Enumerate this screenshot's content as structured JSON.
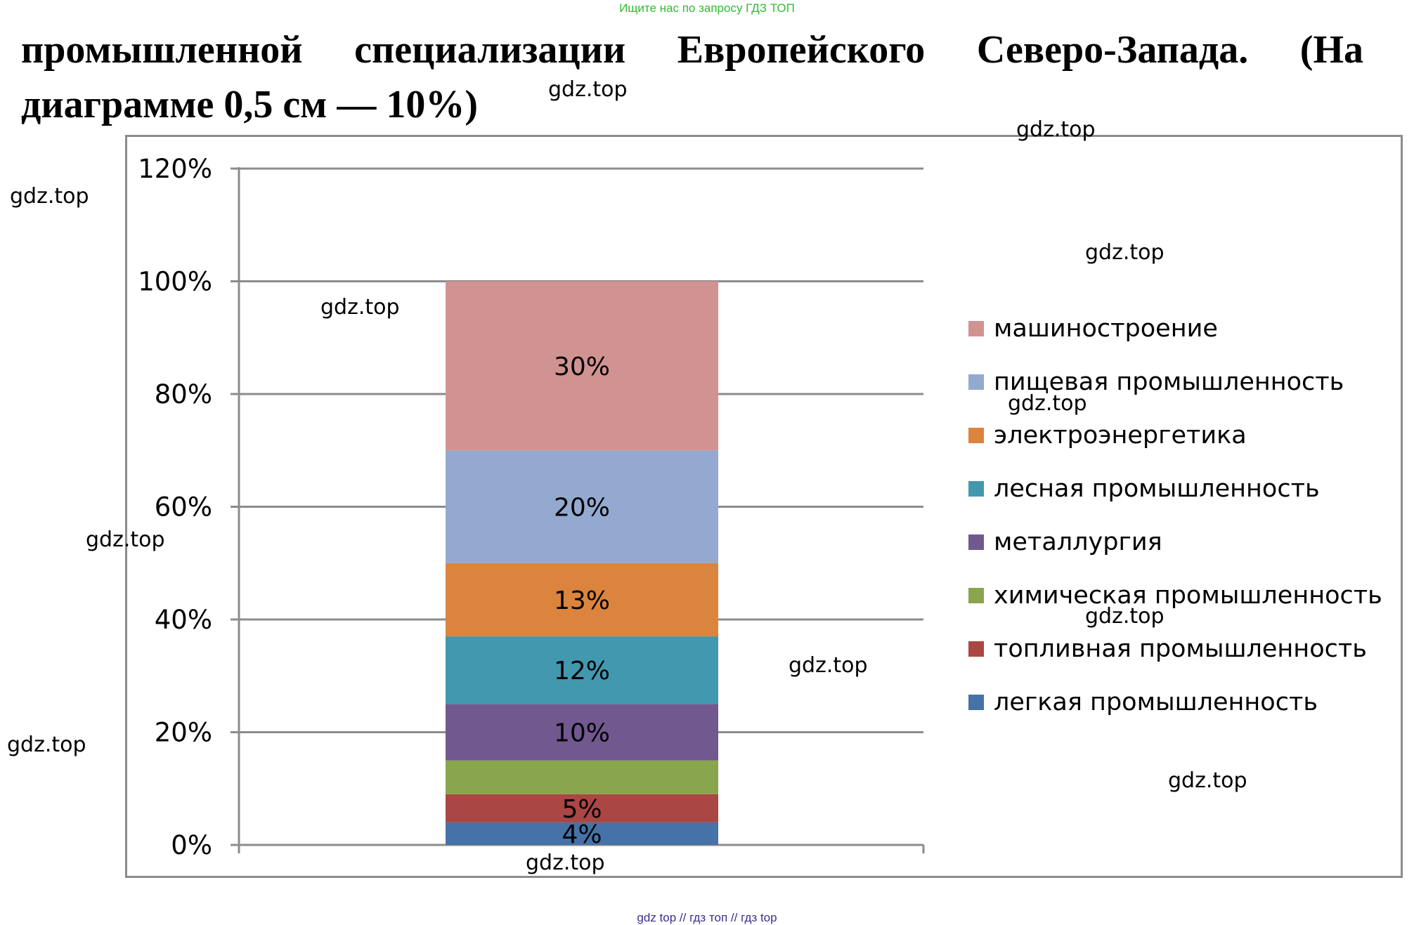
{
  "top_note": "Ищите нас по запросу ГДЗ ТОП",
  "heading": "промышленной специализации Европейского Северо-Запада. (На диаграмме 0,5 см — 10%)",
  "footer": "gdz top  //  гдз топ  //  гдз top",
  "watermarks": [
    "gdz.top",
    "gdz.top",
    "gdz.top",
    "gdz.top",
    "gdz.top",
    "gdz.top",
    "gdz.top",
    "gdz.top",
    "gdz.top",
    "gdz.top",
    "gdz.top",
    "gdz.top"
  ],
  "chart_data": {
    "type": "bar",
    "stacked": true,
    "categories": [
      ""
    ],
    "ylim": [
      0,
      120
    ],
    "yticks": [
      "0%",
      "20%",
      "40%",
      "60%",
      "80%",
      "100%",
      "120%"
    ],
    "grid": true,
    "legend_position": "right",
    "series": [
      {
        "name": "легкая промышленность",
        "values": [
          4
        ],
        "label": "4%",
        "color": "#4572a7"
      },
      {
        "name": "топливная промышленность",
        "values": [
          5
        ],
        "label": "5%",
        "color": "#aa4643"
      },
      {
        "name": "химическая промышленность",
        "values": [
          6
        ],
        "label": "",
        "color": "#89a54e"
      },
      {
        "name": "металлургия",
        "values": [
          10
        ],
        "label": "10%",
        "color": "#71588f"
      },
      {
        "name": "лесная промышленность",
        "values": [
          12
        ],
        "label": "12%",
        "color": "#4198af"
      },
      {
        "name": "электроэнергетика",
        "values": [
          13
        ],
        "label": "13%",
        "color": "#db843d"
      },
      {
        "name": "пищевая промышленность",
        "values": [
          20
        ],
        "label": "20%",
        "color": "#93a9cf"
      },
      {
        "name": "машиностроение",
        "values": [
          30
        ],
        "label": "30%",
        "color": "#d19392"
      }
    ]
  }
}
